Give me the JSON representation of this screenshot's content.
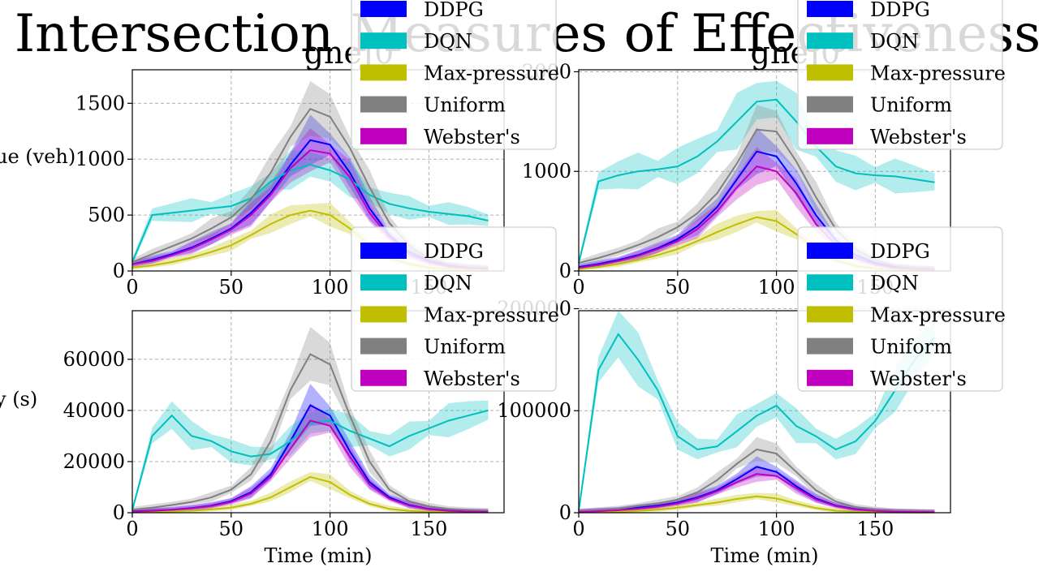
{
  "figure": {
    "suptitle": "Intersection Measures of Effectiveness"
  },
  "legend": {
    "entries": [
      "DDPG",
      "DQN",
      "Max-pressure",
      "Uniform",
      "Webster's"
    ]
  },
  "colors": {
    "DDPG": "#0000ff",
    "DQN": "#00bfbf",
    "Max-pressure": "#bfbf00",
    "Uniform": "#808080",
    "Webster's": "#bf00bf"
  },
  "chart_data": [
    {
      "type": "line",
      "title": "gneJ0",
      "xlabel": "",
      "ylabel": "ue (veh)",
      "xlim": [
        0,
        188
      ],
      "ylim": [
        0,
        1800
      ],
      "xticks": [
        0,
        50,
        100,
        150
      ],
      "yticks": [
        0,
        500,
        1000,
        1500
      ],
      "grid": true,
      "legend_position": "upper right",
      "x": [
        0,
        10,
        20,
        30,
        40,
        50,
        60,
        70,
        80,
        90,
        100,
        110,
        120,
        130,
        140,
        150,
        160,
        170,
        180
      ],
      "series": [
        {
          "name": "DDPG",
          "values": [
            60,
            100,
            150,
            210,
            290,
            380,
            520,
            700,
            950,
            1170,
            1130,
            880,
            560,
            320,
            170,
            90,
            50,
            30,
            25
          ]
        },
        {
          "name": "DQN",
          "values": [
            80,
            500,
            520,
            540,
            560,
            580,
            650,
            800,
            900,
            950,
            900,
            820,
            680,
            600,
            560,
            530,
            510,
            490,
            450
          ]
        },
        {
          "name": "Max-pressure",
          "values": [
            30,
            50,
            80,
            120,
            170,
            230,
            320,
            420,
            500,
            540,
            500,
            380,
            230,
            120,
            60,
            30,
            20,
            15,
            10
          ]
        },
        {
          "name": "Uniform",
          "values": [
            80,
            150,
            220,
            290,
            380,
            480,
            640,
            880,
            1200,
            1450,
            1380,
            1100,
            750,
            430,
            230,
            110,
            60,
            40,
            30
          ]
        },
        {
          "name": "Webster's",
          "values": [
            60,
            90,
            140,
            200,
            280,
            370,
            500,
            680,
            920,
            1080,
            1050,
            840,
            520,
            300,
            150,
            80,
            40,
            25,
            20
          ]
        }
      ]
    },
    {
      "type": "line",
      "title": "gneJ0",
      "xlabel": "",
      "ylabel": "",
      "xlim": [
        0,
        188
      ],
      "ylim": [
        0,
        2020
      ],
      "xticks": [
        0,
        50,
        100,
        150
      ],
      "yticks": [
        0,
        1000,
        2000
      ],
      "grid": true,
      "legend_position": "upper right",
      "x": [
        0,
        10,
        20,
        30,
        40,
        50,
        60,
        70,
        80,
        90,
        100,
        110,
        120,
        130,
        140,
        150,
        160,
        170,
        180
      ],
      "series": [
        {
          "name": "DDPG",
          "values": [
            40,
            70,
            110,
            160,
            230,
            320,
            450,
            640,
            920,
            1200,
            1150,
            880,
            560,
            310,
            160,
            80,
            40,
            25,
            20
          ]
        },
        {
          "name": "DQN",
          "values": [
            80,
            900,
            960,
            1000,
            1020,
            1050,
            1150,
            1300,
            1500,
            1700,
            1720,
            1500,
            1250,
            1050,
            980,
            960,
            950,
            920,
            890
          ]
        },
        {
          "name": "Max-pressure",
          "values": [
            20,
            40,
            70,
            110,
            160,
            220,
            300,
            390,
            470,
            540,
            500,
            370,
            220,
            110,
            50,
            25,
            15,
            10,
            8
          ]
        },
        {
          "name": "Uniform",
          "values": [
            80,
            130,
            190,
            260,
            340,
            440,
            580,
            780,
            1080,
            1420,
            1400,
            1100,
            740,
            420,
            220,
            110,
            55,
            35,
            25
          ]
        },
        {
          "name": "Webster's",
          "values": [
            30,
            60,
            100,
            150,
            220,
            300,
            420,
            600,
            840,
            1050,
            1000,
            780,
            470,
            260,
            130,
            65,
            30,
            20,
            15
          ]
        }
      ]
    },
    {
      "type": "line",
      "title": "",
      "xlabel": "Time  (min)",
      "ylabel": "y (s)",
      "xlim": [
        0,
        188
      ],
      "ylim": [
        0,
        79000
      ],
      "xticks": [
        0,
        50,
        100,
        150
      ],
      "yticks": [
        0,
        20000,
        40000,
        60000
      ],
      "grid": true,
      "legend_position": "upper right",
      "x": [
        0,
        10,
        20,
        30,
        40,
        50,
        60,
        70,
        80,
        90,
        100,
        110,
        120,
        130,
        140,
        150,
        160,
        170,
        180
      ],
      "series": [
        {
          "name": "DDPG",
          "values": [
            500,
            800,
            1200,
            1800,
            2800,
            4500,
            8000,
            15000,
            28000,
            42000,
            38000,
            24000,
            12000,
            6000,
            3000,
            1500,
            800,
            500,
            400
          ]
        },
        {
          "name": "DQN",
          "values": [
            1000,
            30000,
            38000,
            30000,
            28000,
            24000,
            22000,
            23000,
            28000,
            35000,
            36000,
            32000,
            29000,
            26000,
            30000,
            33000,
            36000,
            38000,
            40000
          ]
        },
        {
          "name": "Max-pressure",
          "values": [
            200,
            300,
            500,
            800,
            1300,
            2000,
            3500,
            6000,
            10000,
            14000,
            12000,
            7000,
            3500,
            1500,
            700,
            400,
            250,
            200,
            150
          ]
        },
        {
          "name": "Uniform",
          "values": [
            1200,
            2000,
            3000,
            4200,
            6000,
            9000,
            15000,
            28000,
            48000,
            62000,
            58000,
            38000,
            20000,
            9000,
            4500,
            2500,
            1500,
            1000,
            800
          ]
        },
        {
          "name": "Webster's",
          "values": [
            400,
            700,
            1100,
            1700,
            2600,
            4200,
            7500,
            14000,
            25000,
            36000,
            34000,
            22000,
            11000,
            5500,
            2800,
            1400,
            700,
            450,
            350
          ]
        }
      ]
    },
    {
      "type": "line",
      "title": "",
      "xlabel": "Time  (min)",
      "ylabel": "",
      "xlim": [
        0,
        188
      ],
      "ylim": [
        0,
        198000
      ],
      "xticks": [
        0,
        50,
        100,
        150
      ],
      "yticks": [
        0,
        100000,
        200000
      ],
      "grid": true,
      "legend_position": "upper right",
      "x": [
        0,
        10,
        20,
        30,
        40,
        50,
        60,
        70,
        80,
        90,
        100,
        110,
        120,
        130,
        140,
        150,
        160,
        170,
        180
      ],
      "series": [
        {
          "name": "DDPG",
          "values": [
            1000,
            2000,
            3000,
            5000,
            7000,
            10000,
            15000,
            22000,
            33000,
            45000,
            40000,
            26000,
            14000,
            7000,
            3500,
            2000,
            1200,
            800,
            600
          ]
        },
        {
          "name": "DQN",
          "values": [
            2000,
            140000,
            175000,
            150000,
            120000,
            75000,
            62000,
            65000,
            80000,
            95000,
            105000,
            85000,
            75000,
            62000,
            70000,
            90000,
            120000,
            150000,
            172000
          ]
        },
        {
          "name": "Max-pressure",
          "values": [
            300,
            600,
            1000,
            1800,
            3000,
            5000,
            7500,
            10000,
            13500,
            16000,
            14000,
            9000,
            4500,
            2000,
            900,
            500,
            300,
            200,
            150
          ]
        },
        {
          "name": "Uniform",
          "values": [
            1500,
            2500,
            4000,
            6500,
            9000,
            13000,
            20000,
            32000,
            48000,
            62000,
            58000,
            40000,
            22000,
            11000,
            5500,
            3000,
            1800,
            1200,
            900
          ]
        },
        {
          "name": "Webster's",
          "values": [
            800,
            1500,
            2500,
            4000,
            6000,
            9000,
            14000,
            21000,
            30000,
            38000,
            36000,
            24000,
            13000,
            6500,
            3200,
            1800,
            1000,
            700,
            500
          ]
        }
      ]
    }
  ]
}
